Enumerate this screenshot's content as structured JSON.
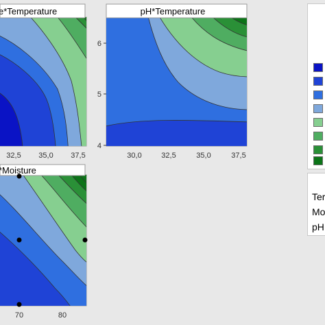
{
  "chart_data": [
    {
      "type": "contour",
      "title": "Moisture*Temperature",
      "title_visible_fragment": "e*Temperature",
      "x_tick_labels": [
        "32,5",
        "35,0",
        "37,5"
      ],
      "y_tick_labels": [],
      "x_range": [
        28.0,
        38.0
      ],
      "colors": [
        "#0a13c5",
        "#1f43d6",
        "#2f6fe0",
        "#7fa8dc",
        "#86cf90",
        "#4fad61",
        "#2a9037",
        "#0c7418"
      ]
    },
    {
      "type": "contour",
      "title": "pH*Temperature",
      "x_tick_labels": [
        "30,0",
        "32,5",
        "35,0",
        "37,5"
      ],
      "y_tick_labels": [
        "6",
        "5",
        "4"
      ],
      "x_range": [
        28.0,
        38.0
      ],
      "y_range": [
        4.0,
        6.5
      ],
      "colors": [
        "#0a13c5",
        "#1f43d6",
        "#2f6fe0",
        "#7fa8dc",
        "#86cf90",
        "#4fad61",
        "#2a9037",
        "#0c7418"
      ]
    },
    {
      "type": "contour",
      "title": "pH*Moisture",
      "title_visible_fragment": "*Moisture",
      "x_tick_labels": [
        "70",
        "80"
      ],
      "y_tick_labels": [],
      "x_range": [
        64.0,
        85.0
      ],
      "design_points": [
        {
          "x": 70,
          "y": "top"
        },
        {
          "x": 70,
          "y": "center"
        },
        {
          "x": 85,
          "y": "center"
        },
        {
          "x": 70,
          "y": "bottom"
        }
      ],
      "colors": [
        "#0a13c5",
        "#1f43d6",
        "#2f6fe0",
        "#7fa8dc",
        "#86cf90",
        "#4fad61",
        "#2a9037",
        "#0c7418"
      ]
    }
  ],
  "legend": {
    "swatches": [
      "#0a13c5",
      "#1f43d6",
      "#2f6fe0",
      "#7fa8dc",
      "#86cf90",
      "#4fad61",
      "#2a9037",
      "#0c7418"
    ]
  },
  "hold_values": {
    "items": [
      "Ter",
      "Mo",
      "pH"
    ]
  }
}
